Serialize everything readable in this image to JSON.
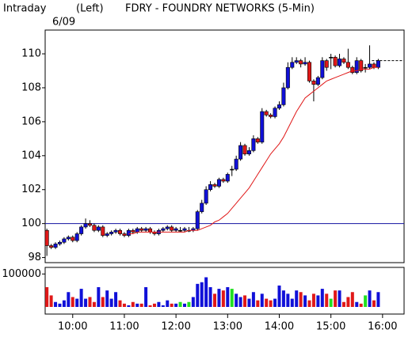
{
  "header": {
    "left": "Intraday",
    "mode": "(Left)",
    "title": "FDRY - FOUNDRY NETWORKS (5-Min)",
    "date": "6/09"
  },
  "chart_data": [
    {
      "type": "candlestick",
      "up_color": "#1010d8",
      "down_color": "#e01818",
      "flat_color": "#000000",
      "x": [
        570,
        575,
        580,
        585,
        590,
        595,
        600,
        605,
        610,
        615,
        620,
        625,
        630,
        635,
        640,
        645,
        650,
        655,
        660,
        665,
        670,
        675,
        680,
        685,
        690,
        695,
        700,
        705,
        710,
        715,
        720,
        725,
        730,
        735,
        740,
        745,
        750,
        755,
        760,
        765,
        770,
        775,
        780,
        785,
        790,
        795,
        800,
        805,
        810,
        815,
        820,
        825,
        830,
        835,
        840,
        845,
        850,
        855,
        860,
        865,
        870,
        875,
        880,
        885,
        890,
        895,
        900,
        905,
        910,
        915,
        920,
        925,
        930,
        935,
        940,
        945,
        950,
        955
      ],
      "open": [
        99.6,
        98.7,
        98.6,
        98.8,
        98.9,
        99.1,
        99.2,
        99.0,
        99.4,
        99.8,
        100.0,
        99.9,
        99.6,
        99.8,
        99.3,
        99.4,
        99.5,
        99.6,
        99.4,
        99.3,
        99.6,
        99.5,
        99.7,
        99.6,
        99.7,
        99.5,
        99.4,
        99.6,
        99.7,
        99.8,
        99.6,
        99.6,
        99.6,
        99.6,
        99.6,
        99.7,
        100.7,
        101.2,
        102.0,
        102.3,
        102.2,
        102.6,
        102.5,
        103.2,
        103.2,
        103.8,
        104.6,
        104.1,
        104.3,
        105.0,
        104.8,
        106.6,
        106.4,
        106.3,
        106.8,
        107.0,
        108.0,
        109.2,
        109.5,
        109.6,
        109.4,
        109.5,
        108.4,
        108.2,
        108.6,
        109.6,
        109.8,
        109.8,
        109.3,
        109.7,
        109.5,
        109.2,
        108.9,
        109.6,
        109.2,
        109.2,
        109.4,
        109.2
      ],
      "high": [
        99.7,
        98.8,
        98.9,
        99.0,
        99.2,
        99.3,
        99.3,
        99.5,
        99.9,
        100.3,
        100.2,
        100.0,
        99.9,
        99.9,
        99.5,
        99.6,
        99.7,
        99.7,
        99.5,
        99.7,
        99.7,
        99.8,
        99.8,
        99.8,
        99.8,
        99.6,
        99.7,
        99.8,
        99.9,
        99.9,
        99.8,
        99.8,
        99.8,
        99.8,
        99.8,
        100.8,
        101.4,
        102.2,
        102.5,
        102.4,
        102.7,
        102.7,
        103.0,
        103.4,
        104.0,
        104.8,
        104.7,
        104.5,
        105.2,
        105.1,
        106.8,
        106.7,
        106.5,
        106.9,
        107.2,
        108.3,
        109.5,
        109.8,
        109.8,
        109.7,
        109.8,
        109.6,
        108.5,
        108.7,
        109.8,
        109.7,
        110.0,
        109.9,
        110.0,
        109.8,
        110.3,
        109.3,
        109.8,
        109.7,
        109.4,
        110.5,
        109.5,
        109.7
      ],
      "low": [
        98.1,
        98.5,
        98.5,
        98.7,
        98.8,
        99.0,
        98.9,
        98.9,
        99.3,
        99.7,
        99.8,
        99.5,
        99.5,
        99.2,
        99.2,
        99.3,
        99.4,
        99.3,
        99.2,
        99.2,
        99.4,
        99.4,
        99.5,
        99.5,
        99.4,
        99.3,
        99.3,
        99.5,
        99.6,
        99.5,
        99.5,
        99.5,
        99.5,
        99.5,
        99.5,
        99.6,
        100.6,
        101.1,
        101.9,
        102.1,
        102.1,
        102.4,
        102.4,
        102.8,
        103.1,
        103.7,
        104.0,
        104.0,
        104.2,
        104.7,
        104.7,
        106.3,
        106.2,
        106.2,
        106.7,
        106.9,
        107.9,
        109.1,
        109.4,
        109.2,
        109.3,
        108.3,
        107.2,
        108.1,
        108.5,
        109.0,
        109.1,
        109.2,
        109.2,
        109.4,
        109.1,
        108.8,
        108.8,
        108.9,
        108.9,
        109.1,
        109.1,
        109.1
      ],
      "close": [
        98.7,
        98.6,
        98.8,
        98.9,
        99.1,
        99.2,
        99.0,
        99.4,
        99.8,
        100.0,
        99.9,
        99.6,
        99.8,
        99.3,
        99.4,
        99.5,
        99.6,
        99.4,
        99.3,
        99.6,
        99.5,
        99.7,
        99.6,
        99.7,
        99.5,
        99.4,
        99.6,
        99.7,
        99.8,
        99.6,
        99.7,
        99.6,
        99.7,
        99.6,
        99.7,
        100.7,
        101.2,
        102.0,
        102.3,
        102.2,
        102.6,
        102.5,
        102.9,
        103.2,
        103.8,
        104.6,
        104.1,
        104.3,
        105.0,
        104.8,
        106.6,
        106.4,
        106.3,
        106.8,
        107.0,
        108.0,
        109.2,
        109.5,
        109.6,
        109.4,
        109.5,
        108.4,
        108.2,
        108.6,
        109.6,
        109.2,
        109.8,
        109.3,
        109.7,
        109.5,
        109.2,
        108.9,
        109.6,
        109.0,
        109.2,
        109.4,
        109.2,
        109.6
      ],
      "moving_average": {
        "color": "#e01818",
        "values": [
          null,
          null,
          null,
          null,
          null,
          null,
          null,
          null,
          null,
          null,
          null,
          null,
          null,
          null,
          null,
          null,
          null,
          null,
          null,
          99.4,
          99.4,
          99.5,
          99.5,
          99.5,
          99.5,
          99.5,
          99.5,
          99.5,
          99.5,
          99.5,
          99.5,
          99.5,
          99.5,
          99.6,
          99.6,
          99.6,
          99.7,
          99.8,
          99.9,
          100.1,
          100.2,
          100.4,
          100.6,
          100.9,
          101.2,
          101.5,
          101.8,
          102.1,
          102.5,
          102.9,
          103.3,
          103.7,
          104.1,
          104.4,
          104.7,
          105.1,
          105.6,
          106.1,
          106.6,
          107.0,
          107.4,
          107.6,
          107.8,
          108.0,
          108.2,
          108.4,
          108.5,
          108.6,
          108.7,
          108.8,
          108.9,
          109.0,
          109.0,
          109.1,
          109.1,
          109.1,
          109.2,
          109.2
        ]
      },
      "reference_line": {
        "value": 100,
        "color": "#1010a0"
      },
      "last_price_line": {
        "value": 109.6,
        "color": "#000000"
      },
      "xlim": [
        568,
        985
      ],
      "ylim": [
        97.7,
        111.4
      ],
      "yticks": [
        98,
        100,
        102,
        104,
        106,
        108,
        110
      ],
      "xticks": [
        {
          "value": 600,
          "label": "10:00"
        },
        {
          "value": 660,
          "label": "11:00"
        },
        {
          "value": 720,
          "label": "12:00"
        },
        {
          "value": 780,
          "label": "13:00"
        },
        {
          "value": 840,
          "label": "14:00"
        },
        {
          "value": 900,
          "label": "15:00"
        },
        {
          "value": 960,
          "label": "16:00"
        }
      ]
    },
    {
      "type": "volume",
      "values": [
        60000,
        35000,
        15000,
        10000,
        20000,
        45000,
        30000,
        25000,
        55000,
        25000,
        30000,
        15000,
        60000,
        30000,
        50000,
        25000,
        45000,
        20000,
        10000,
        5000,
        15000,
        10000,
        10000,
        60000,
        5000,
        10000,
        15000,
        5000,
        20000,
        10000,
        10000,
        15000,
        10000,
        15000,
        30000,
        70000,
        75000,
        90000,
        60000,
        40000,
        55000,
        50000,
        60000,
        55000,
        40000,
        30000,
        35000,
        25000,
        45000,
        20000,
        40000,
        25000,
        20000,
        25000,
        65000,
        50000,
        40000,
        25000,
        50000,
        45000,
        35000,
        20000,
        40000,
        35000,
        55000,
        40000,
        25000,
        50000,
        50000,
        15000,
        30000,
        45000,
        15000,
        10000,
        35000,
        50000,
        20000,
        45000
      ],
      "ylim": [
        0,
        120000
      ],
      "yticks": [
        100000
      ]
    }
  ]
}
